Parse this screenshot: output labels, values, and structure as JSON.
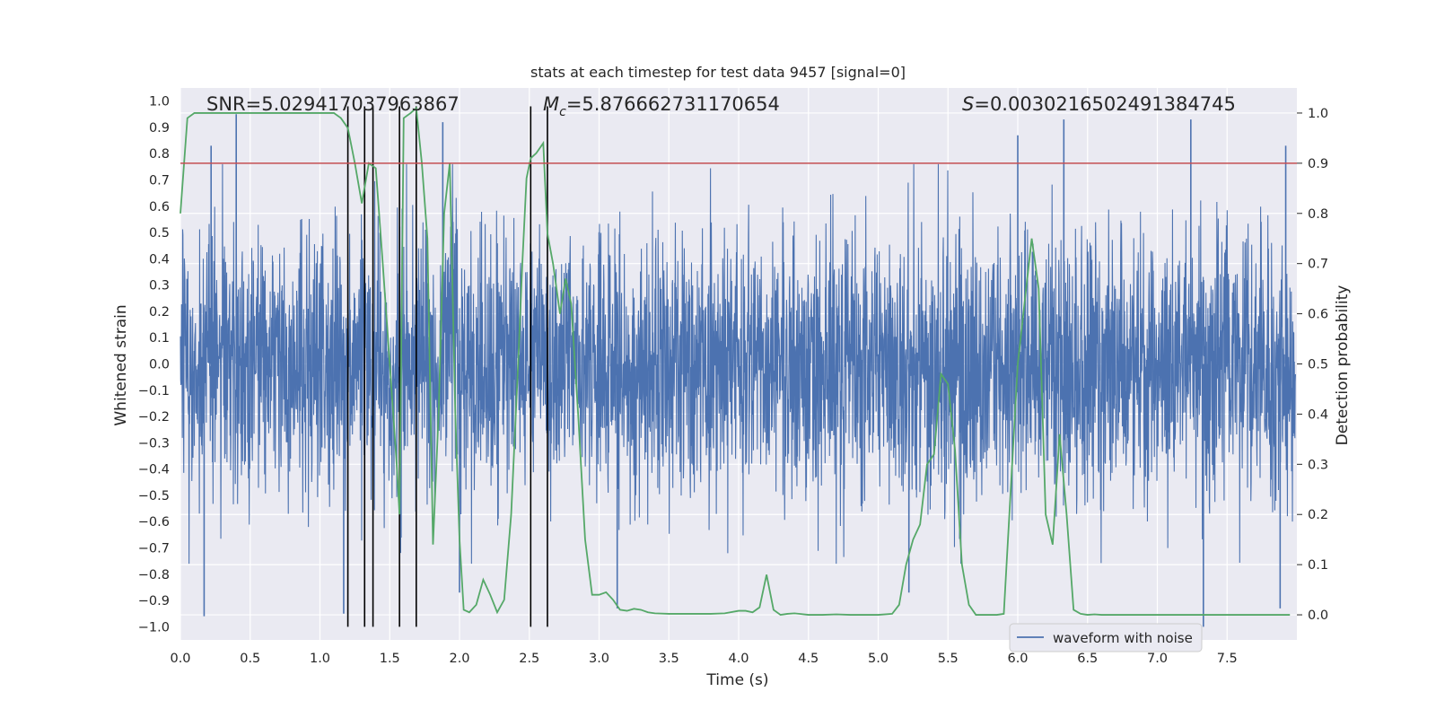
{
  "chart_data": {
    "type": "line",
    "title": "stats at each timestep for test data 9457 [signal=0]",
    "xlabel": "Time (s)",
    "ylabel_left": "Whitened strain",
    "ylabel_right": "Detection probability",
    "xlim": [
      0.0,
      8.0
    ],
    "ylim_left": [
      -1.05,
      1.05
    ],
    "ylim_right": [
      -0.05,
      1.05
    ],
    "x_ticks": [
      "0.0",
      "0.5",
      "1.0",
      "1.5",
      "2.0",
      "2.5",
      "3.0",
      "3.5",
      "4.0",
      "4.5",
      "5.0",
      "5.5",
      "6.0",
      "6.5",
      "7.0",
      "7.5"
    ],
    "y_ticks_left": [
      "1.0",
      "0.9",
      "0.8",
      "0.7",
      "0.6",
      "0.5",
      "0.4",
      "0.3",
      "0.2",
      "0.1",
      "0.0",
      "-0.1",
      "-0.2",
      "-0.3",
      "-0.4",
      "-0.5",
      "-0.6",
      "-0.7",
      "-0.8",
      "-0.9",
      "-1.0"
    ],
    "y_ticks_right": [
      "1.0",
      "0.9",
      "0.8",
      "0.7",
      "0.6",
      "0.5",
      "0.4",
      "0.3",
      "0.2",
      "0.1",
      "0.0"
    ],
    "annotations": {
      "snr": "SNR=5.029417037963867",
      "mc_symbol": "M",
      "mc_sub": "c",
      "mc_value": "=5.876662731170654",
      "s_symbol": "S",
      "s_value": "=0.0030216502491384745"
    },
    "legend": {
      "label": "waveform with noise",
      "position": "lower-right"
    },
    "threshold": {
      "value_right": 0.9,
      "color": "#c44e52"
    },
    "vertical_lines_x": [
      1.2,
      1.32,
      1.38,
      1.57,
      1.69,
      2.51,
      2.63
    ],
    "noise": {
      "name": "waveform with noise",
      "color": "#4c72b0",
      "spike_peaks": [
        {
          "t": 0.17,
          "v": -0.96
        },
        {
          "t": 0.22,
          "v": 0.83
        },
        {
          "t": 0.4,
          "v": 0.95
        },
        {
          "t": 1.17,
          "v": -0.95
        },
        {
          "t": 1.88,
          "v": 0.92
        },
        {
          "t": 2.0,
          "v": -0.87
        },
        {
          "t": 3.13,
          "v": -0.93
        },
        {
          "t": 5.22,
          "v": -0.87
        },
        {
          "t": 6.0,
          "v": 0.87
        },
        {
          "t": 6.33,
          "v": 0.93
        },
        {
          "t": 7.24,
          "v": 0.93
        },
        {
          "t": 7.33,
          "v": -1.0
        },
        {
          "t": 7.88,
          "v": -0.93
        },
        {
          "t": 7.92,
          "v": 0.83
        }
      ]
    },
    "probability": {
      "name": "Detection probability",
      "color": "#55a868",
      "x": [
        0.0,
        0.05,
        0.1,
        0.15,
        0.2,
        0.3,
        0.4,
        0.5,
        0.6,
        0.7,
        0.8,
        0.9,
        1.0,
        1.05,
        1.1,
        1.15,
        1.2,
        1.25,
        1.3,
        1.35,
        1.4,
        1.45,
        1.5,
        1.55,
        1.57,
        1.6,
        1.65,
        1.69,
        1.73,
        1.77,
        1.81,
        1.85,
        1.89,
        1.93,
        1.97,
        2.0,
        2.03,
        2.07,
        2.12,
        2.17,
        2.22,
        2.27,
        2.32,
        2.37,
        2.42,
        2.45,
        2.48,
        2.51,
        2.55,
        2.6,
        2.63,
        2.67,
        2.72,
        2.76,
        2.8,
        2.85,
        2.9,
        2.95,
        3.0,
        3.05,
        3.1,
        3.15,
        3.2,
        3.25,
        3.3,
        3.35,
        3.4,
        3.5,
        3.6,
        3.7,
        3.8,
        3.9,
        4.0,
        4.05,
        4.1,
        4.15,
        4.2,
        4.25,
        4.3,
        4.35,
        4.4,
        4.5,
        4.6,
        4.7,
        4.8,
        4.9,
        5.0,
        5.1,
        5.15,
        5.2,
        5.25,
        5.3,
        5.35,
        5.4,
        5.45,
        5.5,
        5.55,
        5.6,
        5.65,
        5.7,
        5.75,
        5.8,
        5.85,
        5.9,
        6.0,
        6.1,
        6.15,
        6.2,
        6.25,
        6.3,
        6.35,
        6.4,
        6.45,
        6.5,
        6.55,
        6.6,
        6.65,
        6.7,
        6.8,
        6.9,
        7.0,
        7.1,
        7.2,
        7.3,
        7.4,
        7.5,
        7.6,
        7.7,
        7.8,
        7.9,
        7.95
      ],
      "values": [
        0.8,
        0.99,
        1.0,
        1.0,
        1.0,
        1.0,
        1.0,
        1.0,
        1.0,
        1.0,
        1.0,
        1.0,
        1.0,
        1.0,
        1.0,
        0.99,
        0.97,
        0.9,
        0.82,
        0.9,
        0.89,
        0.7,
        0.5,
        0.3,
        0.2,
        0.99,
        1.0,
        1.01,
        0.9,
        0.75,
        0.14,
        0.4,
        0.8,
        0.9,
        0.4,
        0.15,
        0.01,
        0.005,
        0.02,
        0.07,
        0.04,
        0.005,
        0.03,
        0.2,
        0.5,
        0.7,
        0.87,
        0.91,
        0.92,
        0.94,
        0.76,
        0.7,
        0.6,
        0.67,
        0.62,
        0.4,
        0.15,
        0.04,
        0.04,
        0.045,
        0.03,
        0.01,
        0.008,
        0.012,
        0.01,
        0.005,
        0.003,
        0.002,
        0.002,
        0.002,
        0.002,
        0.003,
        0.008,
        0.008,
        0.005,
        0.015,
        0.08,
        0.01,
        0.0,
        0.002,
        0.003,
        0.0,
        0.0,
        0.001,
        0.0,
        0.0,
        0.0,
        0.002,
        0.02,
        0.1,
        0.15,
        0.18,
        0.3,
        0.32,
        0.48,
        0.46,
        0.33,
        0.1,
        0.02,
        0.0,
        0.0,
        0.0,
        0.0,
        0.002,
        0.5,
        0.75,
        0.65,
        0.2,
        0.14,
        0.36,
        0.2,
        0.01,
        0.002,
        0.0,
        0.001,
        0.0,
        0.0,
        0.0,
        0.0,
        0.0,
        0.0,
        0.0,
        0.0,
        0.0,
        0.0,
        0.0,
        0.0,
        0.0,
        0.0,
        0.0,
        0.0
      ]
    },
    "colors": {
      "background": "#eaeaf2",
      "grid": "#ffffff",
      "vertical_line": "#000000"
    }
  }
}
